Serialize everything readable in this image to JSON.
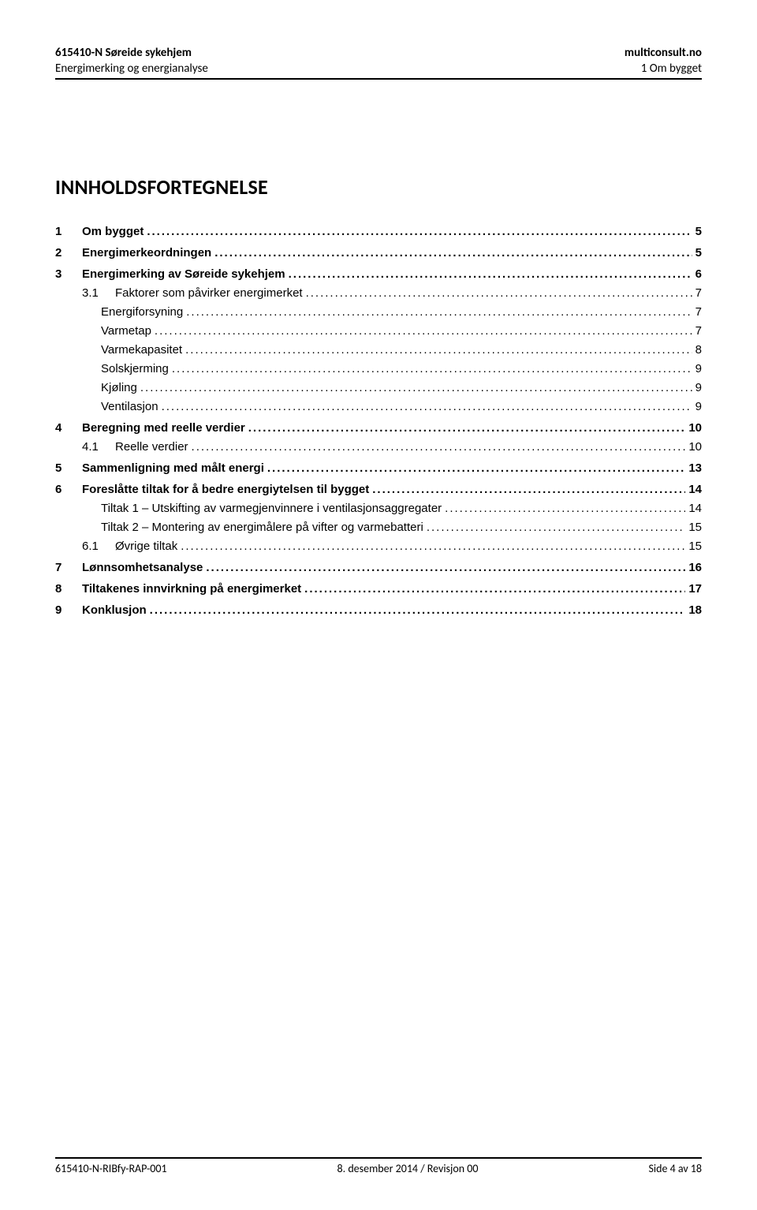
{
  "header": {
    "left_bold": "615410-N Søreide sykehjem",
    "right_bold": "multiconsult.no",
    "left_light": "Energimerking og energianalyse",
    "right_light": "1 Om bygget"
  },
  "title": "INNHOLDSFORTEGNELSE",
  "leader_dots": "........................................................................................................................................................................................................................",
  "toc": [
    {
      "level": 1,
      "num": "1",
      "label": "Om bygget",
      "page": "5"
    },
    {
      "level": 1,
      "num": "2",
      "label": "Energimerkeordningen",
      "page": "5"
    },
    {
      "level": 1,
      "num": "3",
      "label": "Energimerking av Søreide sykehjem",
      "page": "6"
    },
    {
      "level": 2,
      "num": "3.1",
      "label": "Faktorer som påvirker energimerket",
      "page": "7",
      "style": "sub"
    },
    {
      "level": 2,
      "num": "",
      "label": "Energiforsyning",
      "page": "7",
      "style": "indented"
    },
    {
      "level": 2,
      "num": "",
      "label": "Varmetap",
      "page": "7",
      "style": "indented"
    },
    {
      "level": 2,
      "num": "",
      "label": "Varmekapasitet",
      "page": "8",
      "style": "indented"
    },
    {
      "level": 2,
      "num": "",
      "label": "Solskjerming",
      "page": "9",
      "style": "indented"
    },
    {
      "level": 2,
      "num": "",
      "label": "Kjøling",
      "page": "9",
      "style": "indented"
    },
    {
      "level": 2,
      "num": "",
      "label": "Ventilasjon",
      "page": "9",
      "style": "indented"
    },
    {
      "level": 1,
      "num": "4",
      "label": "Beregning med reelle verdier",
      "page": "10"
    },
    {
      "level": 2,
      "num": "4.1",
      "label": "Reelle verdier",
      "page": "10",
      "style": "sub"
    },
    {
      "level": 1,
      "num": "5",
      "label": "Sammenligning med målt energi",
      "page": "13"
    },
    {
      "level": 1,
      "num": "6",
      "label": "Foreslåtte tiltak for å bedre energiytelsen til bygget",
      "page": "14"
    },
    {
      "level": 2,
      "num": "",
      "label": "Tiltak 1 – Utskifting av varmegjenvinnere i ventilasjonsaggregater",
      "page": "14",
      "style": "indented"
    },
    {
      "level": 2,
      "num": "",
      "label": "Tiltak 2 – Montering av energimålere på vifter og varmebatteri",
      "page": "15",
      "style": "indented"
    },
    {
      "level": 2,
      "num": "6.1",
      "label": "Øvrige tiltak",
      "page": "15",
      "style": "sub"
    },
    {
      "level": 1,
      "num": "7",
      "label": "Lønnsomhetsanalyse",
      "page": "16"
    },
    {
      "level": 1,
      "num": "8",
      "label": "Tiltakenes innvirkning på energimerket",
      "page": "17"
    },
    {
      "level": 1,
      "num": "9",
      "label": "Konklusjon",
      "page": "18"
    }
  ],
  "footer": {
    "left": "615410-N-RIBfy-RAP-001",
    "center": "8. desember 2014 / Revisjon 00",
    "right": "Side 4 av 18"
  }
}
